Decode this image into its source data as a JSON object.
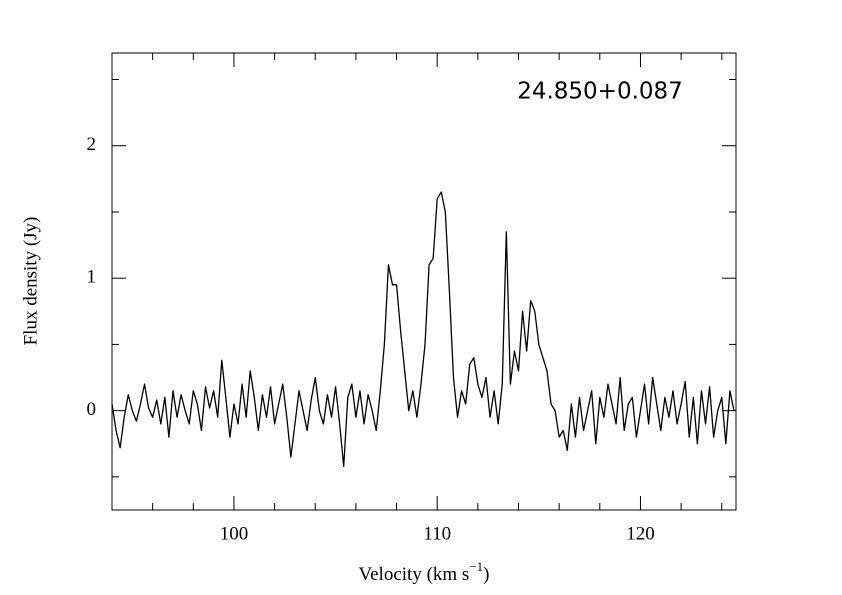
{
  "chart_data": {
    "type": "line",
    "annotation": "24.850+0.087",
    "xlabel": "Velocity (km s",
    "xlabel_sup": "−1",
    "xlabel_end": ")",
    "ylabel": "Flux density (Jy)",
    "xlim": [
      94.0,
      124.7
    ],
    "ylim": [
      -0.75,
      2.7
    ],
    "xticks": [
      100,
      110,
      120
    ],
    "yticks": [
      0,
      1,
      2
    ],
    "xminorticks": [
      96,
      98,
      102,
      104,
      106,
      108,
      112,
      114,
      116,
      118,
      122,
      124
    ],
    "yminorticks": [
      -0.5,
      0.5,
      1.5,
      2.5
    ],
    "series": [
      {
        "color": "#000000",
        "x": [
          94.0,
          94.2,
          94.4,
          94.6,
          94.8,
          95.0,
          95.2,
          95.4,
          95.6,
          95.8,
          96.0,
          96.2,
          96.4,
          96.6,
          96.8,
          97.0,
          97.2,
          97.4,
          97.6,
          97.8,
          98.0,
          98.2,
          98.4,
          98.6,
          98.8,
          99.0,
          99.2,
          99.4,
          99.6,
          99.8,
          100.0,
          100.2,
          100.4,
          100.6,
          100.8,
          101.0,
          101.2,
          101.4,
          101.6,
          101.8,
          102.0,
          102.2,
          102.4,
          102.6,
          102.8,
          103.0,
          103.2,
          103.4,
          103.6,
          103.8,
          104.0,
          104.2,
          104.4,
          104.6,
          104.8,
          105.0,
          105.2,
          105.4,
          105.6,
          105.8,
          106.0,
          106.2,
          106.4,
          106.6,
          106.8,
          107.0,
          107.2,
          107.4,
          107.6,
          107.8,
          108.0,
          108.2,
          108.4,
          108.6,
          108.8,
          109.0,
          109.2,
          109.4,
          109.6,
          109.8,
          110.0,
          110.2,
          110.4,
          110.6,
          110.8,
          111.0,
          111.2,
          111.4,
          111.6,
          111.8,
          112.0,
          112.2,
          112.4,
          112.6,
          112.8,
          113.0,
          113.2,
          113.4,
          113.6,
          113.8,
          114.0,
          114.2,
          114.4,
          114.6,
          114.8,
          115.0,
          115.2,
          115.4,
          115.6,
          115.8,
          116.0,
          116.2,
          116.4,
          116.6,
          116.8,
          117.0,
          117.2,
          117.4,
          117.6,
          117.8,
          118.0,
          118.2,
          118.4,
          118.6,
          118.8,
          119.0,
          119.2,
          119.4,
          119.6,
          119.8,
          120.0,
          120.2,
          120.4,
          120.6,
          120.8,
          121.0,
          121.2,
          121.4,
          121.6,
          121.8,
          122.0,
          122.2,
          122.4,
          122.6,
          122.8,
          123.0,
          123.2,
          123.4,
          123.6,
          123.8,
          124.0,
          124.2,
          124.4,
          124.6
        ],
        "values": [
          0.05,
          -0.15,
          -0.28,
          -0.05,
          0.12,
          0.0,
          -0.08,
          0.05,
          0.2,
          0.02,
          -0.05,
          0.08,
          -0.1,
          0.1,
          -0.2,
          0.15,
          -0.05,
          0.12,
          0.0,
          -0.1,
          0.15,
          0.05,
          -0.15,
          0.18,
          0.02,
          0.15,
          -0.05,
          0.38,
          0.1,
          -0.2,
          0.05,
          -0.1,
          0.2,
          -0.05,
          0.3,
          0.1,
          -0.15,
          0.12,
          -0.05,
          0.18,
          -0.1,
          0.05,
          0.2,
          -0.05,
          -0.35,
          -0.1,
          0.15,
          0.0,
          -0.15,
          0.08,
          0.25,
          0.0,
          -0.1,
          0.12,
          -0.05,
          0.18,
          -0.1,
          -0.42,
          0.1,
          0.2,
          -0.05,
          0.15,
          -0.1,
          0.12,
          0.0,
          -0.15,
          0.15,
          0.5,
          1.1,
          0.95,
          0.95,
          0.6,
          0.3,
          0.0,
          0.15,
          -0.05,
          0.2,
          0.5,
          1.1,
          1.15,
          1.6,
          1.65,
          1.5,
          0.9,
          0.25,
          -0.05,
          0.15,
          0.05,
          0.35,
          0.4,
          0.2,
          0.1,
          0.25,
          -0.05,
          0.15,
          -0.1,
          0.2,
          1.35,
          0.2,
          0.45,
          0.3,
          0.75,
          0.45,
          0.83,
          0.75,
          0.5,
          0.4,
          0.3,
          0.05,
          0.0,
          -0.2,
          -0.15,
          -0.3,
          0.05,
          -0.2,
          0.1,
          -0.15,
          0.0,
          0.15,
          -0.25,
          0.1,
          -0.05,
          0.2,
          0.05,
          -0.1,
          0.25,
          -0.15,
          0.05,
          0.1,
          -0.2,
          0.0,
          0.2,
          -0.1,
          0.25,
          0.05,
          -0.15,
          0.1,
          -0.05,
          0.15,
          -0.1,
          0.05,
          0.22,
          -0.2,
          0.1,
          -0.25,
          0.15,
          -0.1,
          0.18,
          -0.2,
          0.0,
          0.1,
          -0.25,
          0.15,
          0.0
        ]
      }
    ]
  }
}
